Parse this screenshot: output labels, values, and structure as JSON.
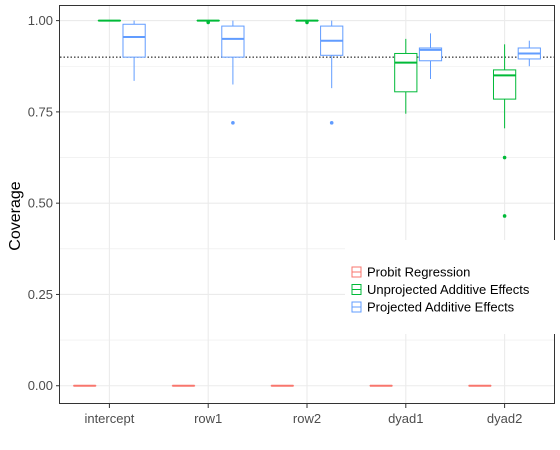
{
  "chart_data": {
    "type": "boxplot",
    "title": "",
    "xlabel": "",
    "ylabel": "Coverage",
    "ylim": [
      -0.05,
      1.04
    ],
    "yticks": [
      0.0,
      0.25,
      0.5,
      0.75,
      1.0
    ],
    "ytick_labels": [
      "0.00",
      "0.25",
      "0.50",
      "0.75",
      "1.00"
    ],
    "reference_line": 0.9,
    "grid": true,
    "legend_position": "right",
    "categories": [
      "intercept",
      "row1",
      "row2",
      "dyad1",
      "dyad2"
    ],
    "series": [
      {
        "name": "Probit Regression",
        "color": "#F8766D",
        "boxes": [
          {
            "min": 0.0,
            "q1": 0.0,
            "median": 0.0,
            "q3": 0.0,
            "max": 0.0,
            "outliers": []
          },
          {
            "min": 0.0,
            "q1": 0.0,
            "median": 0.0,
            "q3": 0.0,
            "max": 0.0,
            "outliers": []
          },
          {
            "min": 0.0,
            "q1": 0.0,
            "median": 0.0,
            "q3": 0.0,
            "max": 0.0,
            "outliers": []
          },
          {
            "min": 0.0,
            "q1": 0.0,
            "median": 0.0,
            "q3": 0.0,
            "max": 0.0,
            "outliers": []
          },
          {
            "min": 0.0,
            "q1": 0.0,
            "median": 0.0,
            "q3": 0.0,
            "max": 0.0,
            "outliers": []
          }
        ]
      },
      {
        "name": "Unprojected Additive Effects",
        "color": "#00BA38",
        "boxes": [
          {
            "min": 1.0,
            "q1": 1.0,
            "median": 1.0,
            "q3": 1.0,
            "max": 1.0,
            "outliers": []
          },
          {
            "min": 1.0,
            "q1": 1.0,
            "median": 1.0,
            "q3": 1.0,
            "max": 1.0,
            "outliers": [
              0.995
            ]
          },
          {
            "min": 1.0,
            "q1": 1.0,
            "median": 1.0,
            "q3": 1.0,
            "max": 1.0,
            "outliers": [
              0.995
            ]
          },
          {
            "min": 0.745,
            "q1": 0.805,
            "median": 0.885,
            "q3": 0.91,
            "max": 0.95,
            "outliers": []
          },
          {
            "min": 0.705,
            "q1": 0.785,
            "median": 0.85,
            "q3": 0.865,
            "max": 0.935,
            "outliers": [
              0.625,
              0.465
            ]
          }
        ]
      },
      {
        "name": "Projected Additive Effects",
        "color": "#619CFF",
        "boxes": [
          {
            "min": 0.835,
            "q1": 0.9,
            "median": 0.955,
            "q3": 0.99,
            "max": 1.0,
            "outliers": []
          },
          {
            "min": 0.825,
            "q1": 0.9,
            "median": 0.95,
            "q3": 0.985,
            "max": 1.0,
            "outliers": [
              0.72
            ]
          },
          {
            "min": 0.815,
            "q1": 0.905,
            "median": 0.945,
            "q3": 0.985,
            "max": 1.0,
            "outliers": [
              0.72
            ]
          },
          {
            "min": 0.84,
            "q1": 0.89,
            "median": 0.92,
            "q3": 0.925,
            "max": 0.965,
            "outliers": []
          },
          {
            "min": 0.875,
            "q1": 0.895,
            "median": 0.91,
            "q3": 0.925,
            "max": 0.945,
            "outliers": []
          }
        ]
      }
    ]
  }
}
